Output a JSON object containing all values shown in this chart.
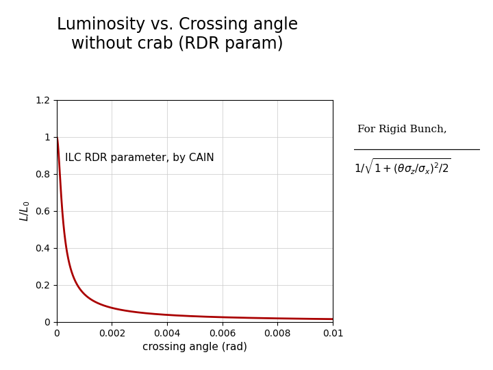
{
  "title": "Luminosity vs. Crossing angle\nwithout crab (RDR param)",
  "xlabel": "crossing angle (rad)",
  "ylabel": "$L/L_0$",
  "annotation": "ILC RDR parameter, by CAIN",
  "formula_line1": "For Rigid Bunch,",
  "formula_line2": "$1/\\sqrt{1+(\\theta\\sigma_z/\\sigma_x)^2/2}$",
  "xmin": 0,
  "xmax": 0.01,
  "ymin": 0,
  "ymax": 1.2,
  "line_color": "#aa0000",
  "bg_color": "#ffffff",
  "grid_color": "#cccccc",
  "sigma_ratio": 9300,
  "title_fontsize": 17,
  "label_fontsize": 11,
  "tick_labelsize": 10,
  "annotation_fontsize": 11,
  "formula_fontsize": 11
}
